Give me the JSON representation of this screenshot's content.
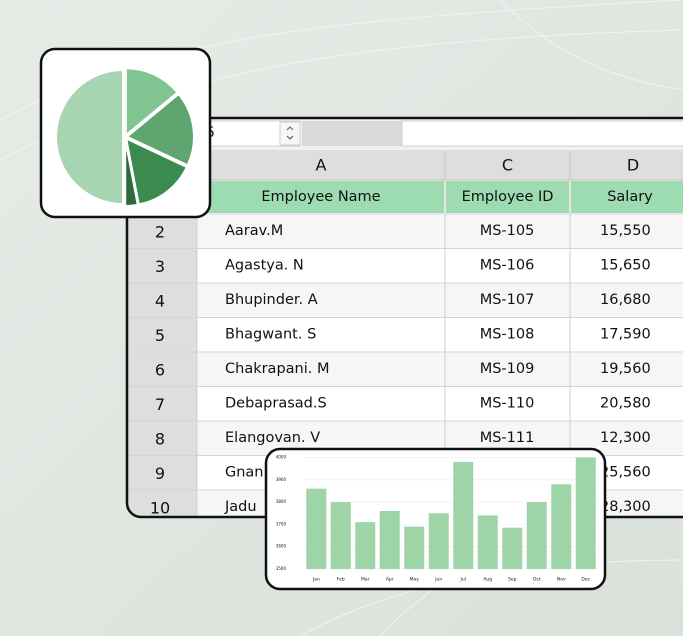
{
  "toolbar": {
    "cell_input": "5"
  },
  "sheet": {
    "columns": [
      "A",
      "C",
      "D"
    ],
    "header": [
      "Employee Name",
      "Employee ID",
      "Salary"
    ],
    "rows": [
      {
        "number": 2,
        "name": "Aarav.M",
        "id": "MS-105",
        "salary": "15,550"
      },
      {
        "number": 3,
        "name": "Agastya. N",
        "id": "MS-106",
        "salary": "15,650"
      },
      {
        "number": 4,
        "name": "Bhupinder. A",
        "id": "MS-107",
        "salary": "16,680"
      },
      {
        "number": 5,
        "name": "Bhagwant. S",
        "id": "MS-108",
        "salary": "17,590"
      },
      {
        "number": 6,
        "name": "Chakrapani. M",
        "id": "MS-109",
        "salary": "19,560"
      },
      {
        "number": 7,
        "name": "Debaprasad.S",
        "id": "MS-110",
        "salary": "20,580"
      },
      {
        "number": 8,
        "name": "Elangovan. V",
        "id": "MS-111",
        "salary": "12,300"
      },
      {
        "number": 9,
        "name": "Gnan",
        "salary": "25,560"
      },
      {
        "number": 10,
        "name": "Jadu",
        "salary": "28,300"
      }
    ]
  },
  "chart_data": [
    {
      "type": "pie",
      "values": [
        14,
        18,
        15,
        3,
        50
      ],
      "colors": [
        "#7fc491",
        "#5fa56f",
        "#3b8a4e",
        "#2c6b3b",
        "#a7d5b1"
      ]
    },
    {
      "type": "bar",
      "categories": [
        "Jan",
        "Feb",
        "Mar",
        "Apr",
        "May",
        "Jun",
        "Jul",
        "Aug",
        "Sep",
        "Oct",
        "Nov",
        "Dec"
      ],
      "values": [
        3860,
        3800,
        3710,
        3760,
        3690,
        3750,
        3980,
        3740,
        3685,
        3800,
        3880,
        4000
      ],
      "color": "#9fd4a9",
      "ylim": [
        3500,
        4020
      ],
      "yticks": [
        3500,
        3600,
        3700,
        3800,
        3900,
        4000
      ]
    }
  ]
}
